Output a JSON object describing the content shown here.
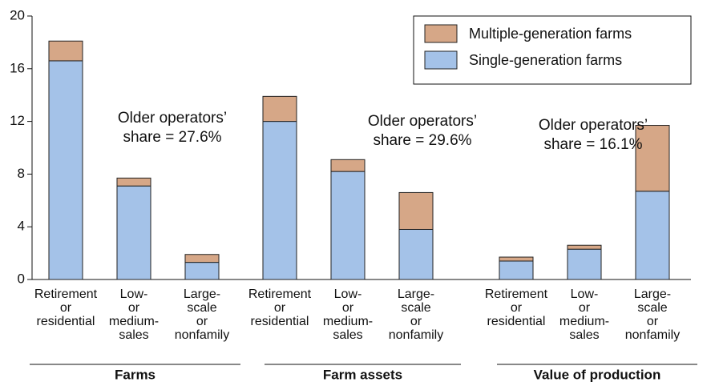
{
  "chart_data": {
    "type": "stacked_bar",
    "categories": [
      [
        "Retirement",
        "or",
        "residential"
      ],
      [
        "Low-",
        "or",
        "medium-",
        "sales"
      ],
      [
        "Large-",
        "scale",
        "or",
        "nonfamily"
      ],
      [
        "Retirement",
        "or",
        "residential"
      ],
      [
        "Low-",
        "or",
        "medium-",
        "sales"
      ],
      [
        "Large-",
        "scale",
        "or",
        "nonfamily"
      ],
      [
        "Retirement",
        "or",
        "residential"
      ],
      [
        "Low-",
        "or",
        "medium-",
        "sales"
      ],
      [
        "Large-",
        "scale",
        "or",
        "nonfamily"
      ]
    ],
    "groups": [
      "Farms",
      "Farm assets",
      "Value of production"
    ],
    "annotations": [
      [
        "Older operators’",
        "share = 27.6%"
      ],
      [
        "Older operators’",
        "share = 29.6%"
      ],
      [
        "Older operators’",
        "share = 16.1%"
      ]
    ],
    "series": [
      {
        "name": "Single-generation farms",
        "color": "#a4c2e8",
        "values": [
          16.6,
          7.1,
          1.3,
          12.0,
          8.2,
          3.8,
          1.4,
          2.3,
          6.7
        ]
      },
      {
        "name": "Multiple-generation farms",
        "color": "#d6a787",
        "values": [
          1.5,
          0.6,
          0.6,
          1.9,
          0.9,
          2.8,
          0.3,
          0.3,
          5.0
        ]
      }
    ],
    "ylim": [
      0,
      20
    ],
    "yticks": [
      0,
      4,
      8,
      12,
      16,
      20
    ],
    "legend": "top-right"
  }
}
